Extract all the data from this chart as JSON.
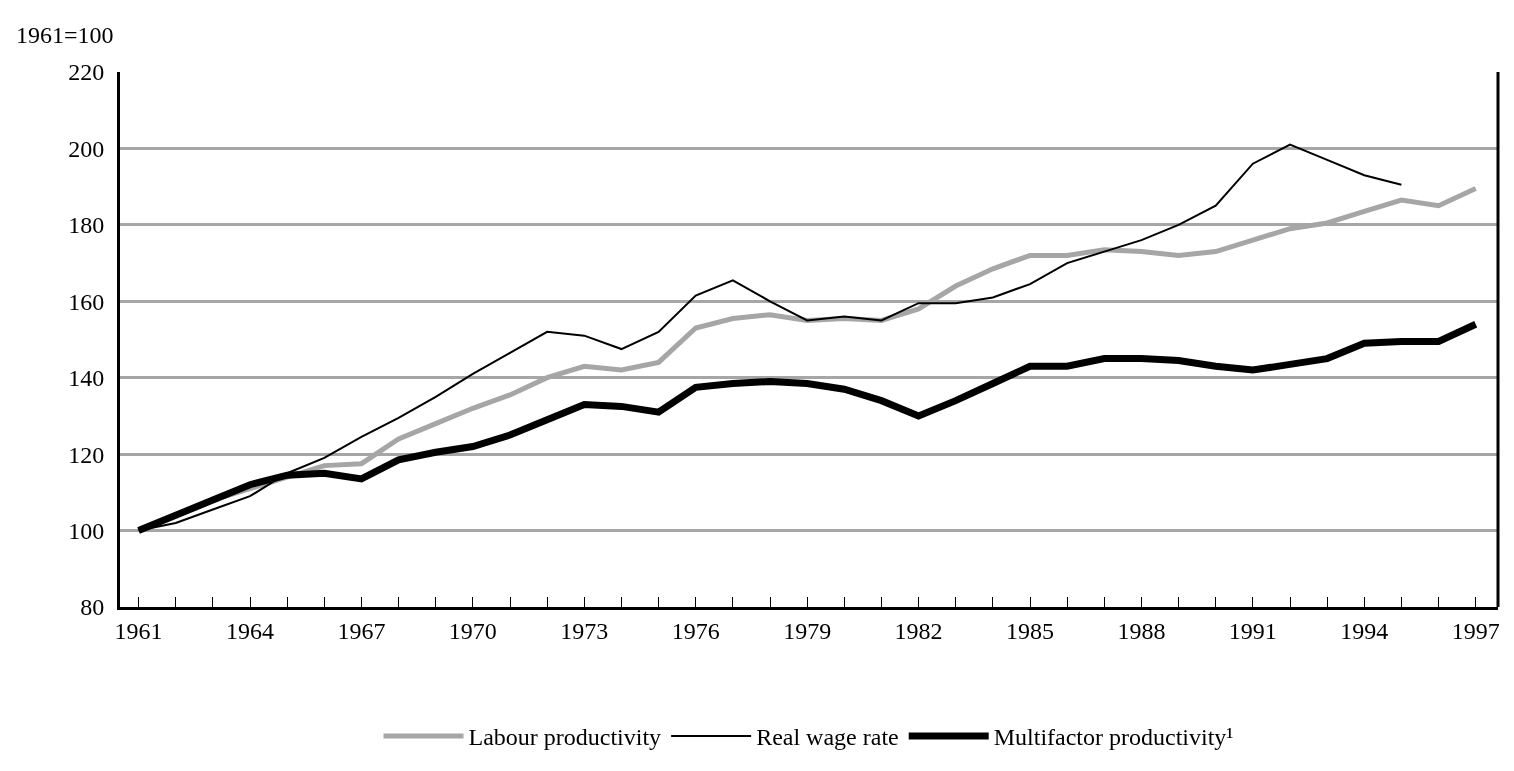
{
  "chart_data": {
    "type": "line",
    "ylabel": "1961=100",
    "x": [
      1961,
      1962,
      1963,
      1964,
      1965,
      1966,
      1967,
      1968,
      1969,
      1970,
      1971,
      1972,
      1973,
      1974,
      1975,
      1976,
      1977,
      1978,
      1979,
      1980,
      1981,
      1982,
      1983,
      1984,
      1985,
      1986,
      1987,
      1988,
      1989,
      1990,
      1991,
      1992,
      1993,
      1994,
      1995,
      1996,
      1997
    ],
    "xlim": [
      1960.5,
      1997.6
    ],
    "xticks": [
      1961,
      {
        "value": 1962,
        "label": null
      },
      {
        "value": 1963,
        "label": null
      },
      1964,
      {
        "value": 1965,
        "label": null
      },
      {
        "value": 1966,
        "label": null
      },
      1967,
      {
        "value": 1968,
        "label": null
      },
      {
        "value": 1969,
        "label": null
      },
      1970,
      {
        "value": 1971,
        "label": null
      },
      {
        "value": 1972,
        "label": null
      },
      1973,
      {
        "value": 1974,
        "label": null
      },
      {
        "value": 1975,
        "label": null
      },
      1976,
      {
        "value": 1977,
        "label": null
      },
      {
        "value": 1978,
        "label": null
      },
      1979,
      {
        "value": 1980,
        "label": null
      },
      {
        "value": 1981,
        "label": null
      },
      1982,
      {
        "value": 1983,
        "label": null
      },
      {
        "value": 1984,
        "label": null
      },
      1985,
      {
        "value": 1986,
        "label": null
      },
      {
        "value": 1987,
        "label": null
      },
      1988,
      {
        "value": 1989,
        "label": null
      },
      {
        "value": 1990,
        "label": null
      },
      1991,
      {
        "value": 1992,
        "label": null
      },
      {
        "value": 1993,
        "label": null
      },
      1994,
      {
        "value": 1995,
        "label": null
      },
      {
        "value": 1996,
        "label": null
      },
      1997
    ],
    "ylim": [
      80,
      220
    ],
    "yticks": [
      80,
      100,
      120,
      140,
      160,
      180,
      200,
      220
    ],
    "grid": "y",
    "legend": "bottom",
    "marker": "none",
    "line_style": "solid",
    "series": [
      {
        "name": "Labour productivity",
        "color": "#a6a6a6",
        "values": [
          100,
          104,
          108,
          111,
          114,
          117,
          117.5,
          124,
          128,
          132,
          135.5,
          140,
          143,
          142,
          144,
          153,
          155.5,
          156.5,
          155,
          155.5,
          155,
          158,
          164,
          168.5,
          172,
          172,
          173.5,
          173,
          172,
          173,
          176,
          179,
          180.5,
          183.5,
          186.5,
          185,
          189.5
        ]
      },
      {
        "name": "Real wage rate",
        "color": "#000000",
        "values": [
          100,
          102,
          105.5,
          109,
          115,
          119,
          124.5,
          129.5,
          135,
          141,
          146.5,
          152,
          151,
          147.5,
          152,
          161.5,
          165.5,
          160,
          155,
          156,
          155,
          159.5,
          159.5,
          161,
          164.5,
          170,
          173,
          176,
          180,
          185,
          196,
          201,
          197,
          193,
          190.5,
          null,
          null
        ]
      },
      {
        "name": "Multifactor productivity¹",
        "color": "#000000",
        "values": [
          100,
          104,
          108,
          112,
          114.5,
          115,
          113.5,
          118.5,
          120.5,
          122,
          125,
          129,
          133,
          132.5,
          131,
          137.5,
          138.5,
          139,
          138.5,
          137,
          134,
          130,
          134,
          138.5,
          143,
          143,
          145,
          145,
          144.5,
          143,
          142,
          143.5,
          145,
          149,
          149.5,
          149.5,
          154
        ]
      }
    ]
  }
}
